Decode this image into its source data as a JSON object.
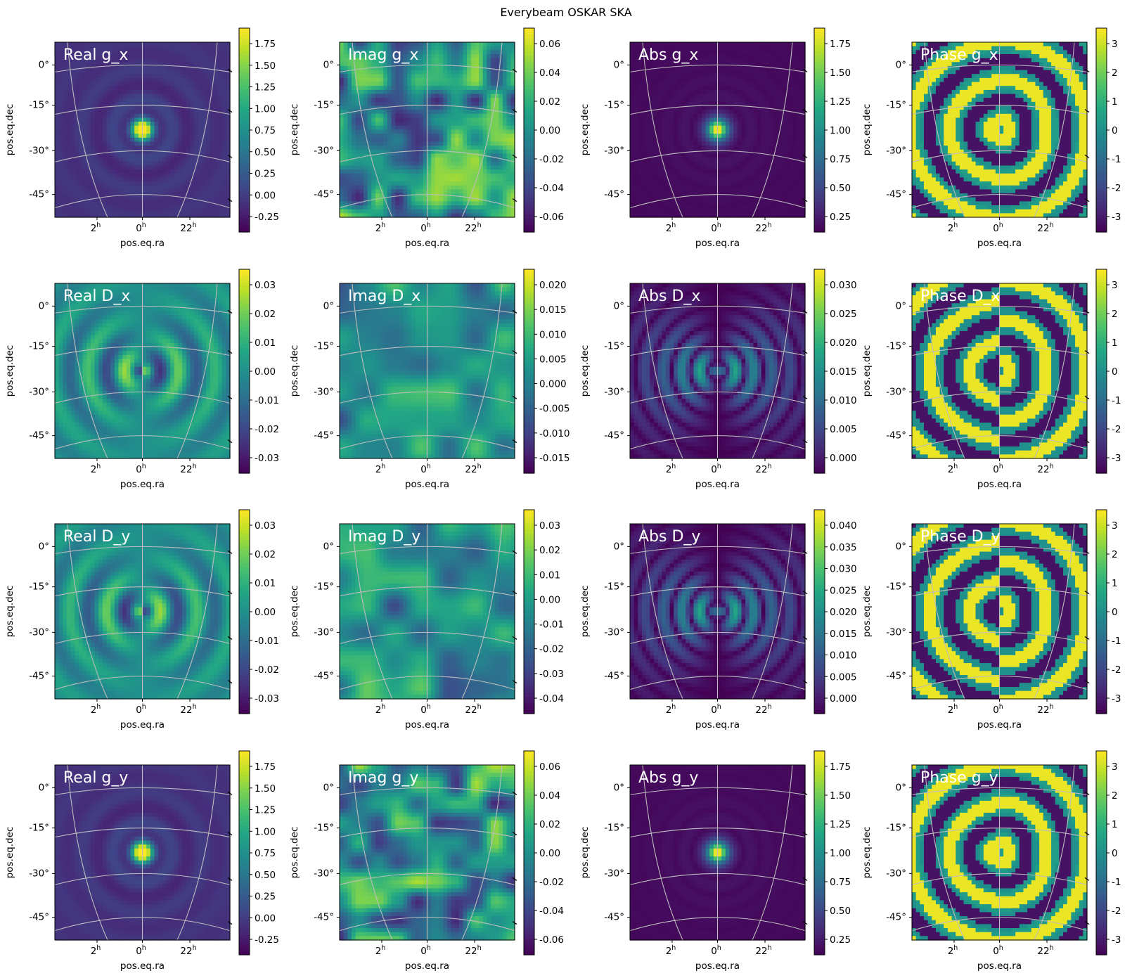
{
  "chart_data": {
    "type": "heatmap",
    "title": "Everybeam OSKAR SKA",
    "colormap": "viridis",
    "xlabel": "pos.eq.ra",
    "ylabel": "pos.eq.dec",
    "ra_ticks": [
      "2",
      "0",
      "22"
    ],
    "ra_tick_unit": "h",
    "dec_ticks": [
      "0°",
      "-15°",
      "-30°",
      "-45°"
    ],
    "grid": true,
    "label_color": "#ffffff",
    "panels": [
      {
        "label": "Real g_x",
        "pattern": "main",
        "cbar_ticks": [
          "1.75",
          "1.50",
          "1.25",
          "1.00",
          "0.75",
          "0.50",
          "0.25",
          "0.00",
          "-0.25"
        ]
      },
      {
        "label": "Imag g_x",
        "pattern": "noise",
        "cbar_ticks": [
          "0.06",
          "0.04",
          "0.02",
          "0.00",
          "-0.02",
          "-0.04",
          "-0.06"
        ]
      },
      {
        "label": "Abs g_x",
        "pattern": "abs",
        "cbar_ticks": [
          "1.75",
          "1.50",
          "1.25",
          "1.00",
          "0.75",
          "0.50",
          "0.25"
        ]
      },
      {
        "label": "Phase g_x",
        "pattern": "phase",
        "cbar_ticks": [
          "3",
          "2",
          "1",
          "0",
          "-1",
          "-2",
          "-3"
        ]
      },
      {
        "label": "Real D_x",
        "pattern": "dreal",
        "cbar_ticks": [
          "0.03",
          "0.02",
          "0.01",
          "0.00",
          "-0.01",
          "-0.02",
          "-0.03"
        ]
      },
      {
        "label": "Imag D_x",
        "pattern": "dimag",
        "cbar_ticks": [
          "0.020",
          "0.015",
          "0.010",
          "0.005",
          "0.000",
          "-0.005",
          "-0.010",
          "-0.015"
        ]
      },
      {
        "label": "Abs D_x",
        "pattern": "dabs",
        "cbar_ticks": [
          "0.030",
          "0.025",
          "0.020",
          "0.015",
          "0.010",
          "0.005",
          "0.000"
        ]
      },
      {
        "label": "Phase D_x",
        "pattern": "phase2",
        "cbar_ticks": [
          "3",
          "2",
          "1",
          "0",
          "-1",
          "-2",
          "-3"
        ]
      },
      {
        "label": "Real D_y",
        "pattern": "drealneg",
        "cbar_ticks": [
          "0.03",
          "0.02",
          "0.01",
          "0.00",
          "-0.01",
          "-0.02",
          "-0.03"
        ]
      },
      {
        "label": "Imag D_y",
        "pattern": "dimag",
        "cbar_ticks": [
          "0.03",
          "0.02",
          "0.01",
          "0.00",
          "-0.01",
          "-0.02",
          "-0.03",
          "-0.04"
        ]
      },
      {
        "label": "Abs D_y",
        "pattern": "dabs",
        "cbar_ticks": [
          "0.040",
          "0.035",
          "0.030",
          "0.025",
          "0.020",
          "0.015",
          "0.010",
          "0.005",
          "0.000"
        ]
      },
      {
        "label": "Phase D_y",
        "pattern": "phase2",
        "cbar_ticks": [
          "3",
          "2",
          "1",
          "0",
          "-1",
          "-2",
          "-3"
        ]
      },
      {
        "label": "Real g_y",
        "pattern": "main",
        "cbar_ticks": [
          "1.75",
          "1.50",
          "1.25",
          "1.00",
          "0.75",
          "0.50",
          "0.25",
          "0.00",
          "-0.25"
        ]
      },
      {
        "label": "Imag g_y",
        "pattern": "noise",
        "cbar_ticks": [
          "0.06",
          "0.04",
          "0.02",
          "0.00",
          "-0.02",
          "-0.04",
          "-0.06"
        ]
      },
      {
        "label": "Abs g_y",
        "pattern": "abs",
        "cbar_ticks": [
          "1.75",
          "1.50",
          "1.25",
          "1.00",
          "0.75",
          "0.50",
          "0.25"
        ]
      },
      {
        "label": "Phase g_y",
        "pattern": "phase",
        "cbar_ticks": [
          "3",
          "2",
          "1",
          "0",
          "-1",
          "-2",
          "-3"
        ]
      }
    ]
  }
}
